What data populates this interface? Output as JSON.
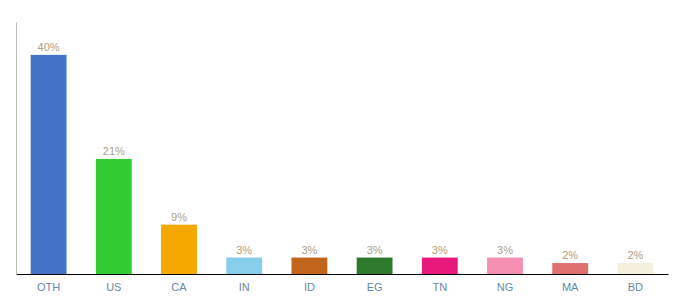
{
  "chart_data": {
    "type": "bar",
    "categories": [
      "OTH",
      "US",
      "CA",
      "IN",
      "ID",
      "EG",
      "TN",
      "NG",
      "MA",
      "BD"
    ],
    "values": [
      40,
      21,
      9,
      3,
      3,
      3,
      3,
      3,
      2,
      2
    ],
    "colors": [
      "#4472c4",
      "#33cc33",
      "#f5a800",
      "#87ceeb",
      "#c0651a",
      "#2d7a2d",
      "#e8197a",
      "#f48fb1",
      "#e07070",
      "#f5f0dc"
    ],
    "ylim": [
      0,
      46
    ],
    "data_labels": true,
    "value_labels": [
      "40%",
      "21%",
      "9%",
      "3%",
      "3%",
      "3%",
      "3%",
      "3%",
      "2%",
      "2%"
    ],
    "tick_labels": "x",
    "grid": false
  }
}
